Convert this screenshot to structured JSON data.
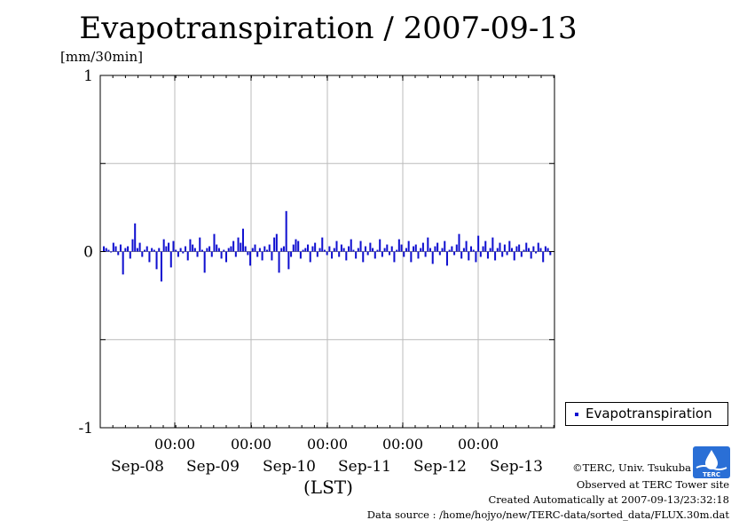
{
  "chart_data": {
    "type": "bar",
    "title": "Evapotranspiration / 2007-09-13",
    "ylabel": "[mm/30min]",
    "xlabel": "(LST)",
    "ylim": [
      -1,
      1
    ],
    "yticks": [
      "1",
      "0",
      "-1"
    ],
    "xticks_time": [
      "00:00",
      "00:00",
      "00:00",
      "00:00",
      "00:00"
    ],
    "xticks_date": [
      "Sep-08",
      "Sep-09",
      "Sep-10",
      "Sep-11",
      "Sep-12",
      "Sep-13"
    ],
    "grid": true,
    "legend_position": "right",
    "series": [
      {
        "name": "Evapotranspiration",
        "color": "#1010d0",
        "values": [
          0.03,
          0.02,
          0.01,
          0.0,
          0.05,
          0.03,
          -0.02,
          0.04,
          -0.13,
          0.02,
          0.03,
          -0.04,
          0.07,
          0.16,
          0.02,
          0.05,
          -0.03,
          0.01,
          0.03,
          -0.06,
          0.02,
          0.01,
          -0.1,
          0.02,
          -0.17,
          0.07,
          0.03,
          0.05,
          -0.09,
          0.06,
          0.01,
          -0.03,
          0.02,
          -0.01,
          0.03,
          -0.05,
          0.07,
          0.04,
          0.02,
          -0.03,
          0.08,
          0.01,
          -0.12,
          0.02,
          0.03,
          -0.03,
          0.1,
          0.04,
          0.02,
          -0.04,
          0.01,
          -0.06,
          0.02,
          0.03,
          0.06,
          -0.03,
          0.08,
          0.05,
          0.13,
          0.03,
          -0.02,
          -0.08,
          0.02,
          0.04,
          -0.03,
          0.02,
          -0.05,
          0.03,
          0.01,
          0.04,
          -0.05,
          0.08,
          0.1,
          -0.12,
          0.02,
          0.03,
          0.23,
          -0.1,
          -0.03,
          0.04,
          0.07,
          0.06,
          -0.04,
          0.01,
          0.02,
          0.04,
          -0.06,
          0.03,
          0.05,
          -0.03,
          0.02,
          0.08,
          0.01,
          -0.02,
          0.03,
          -0.04,
          0.02,
          0.06,
          -0.03,
          0.04,
          0.02,
          -0.05,
          0.03,
          0.07,
          0.01,
          -0.04,
          0.02,
          0.06,
          -0.06,
          0.03,
          -0.02,
          0.05,
          0.02,
          -0.04,
          0.01,
          0.07,
          -0.03,
          0.02,
          0.04,
          -0.02,
          0.03,
          -0.06,
          0.01,
          0.07,
          0.04,
          -0.03,
          0.02,
          0.06,
          -0.06,
          0.03,
          0.04,
          -0.04,
          0.02,
          0.05,
          -0.03,
          0.08,
          0.02,
          -0.07,
          0.03,
          0.05,
          -0.02,
          0.02,
          0.06,
          -0.08,
          0.01,
          0.03,
          -0.02,
          0.04,
          0.1,
          -0.04,
          0.02,
          0.06,
          -0.05,
          0.03,
          0.01,
          -0.06,
          0.09,
          -0.03,
          0.03,
          0.06,
          -0.04,
          0.02,
          0.08,
          -0.05,
          0.02,
          0.05,
          -0.03,
          0.04,
          -0.02,
          0.06,
          0.02,
          -0.05,
          0.03,
          0.04,
          -0.03,
          0.01,
          0.05,
          0.02,
          -0.04,
          0.03,
          -0.01,
          0.05,
          0.02,
          -0.06,
          0.03,
          0.02,
          -0.02
        ]
      }
    ]
  },
  "legend": {
    "label": "Evapotranspiration"
  },
  "footer": {
    "credit": "©TERC, Univ. Tsukuba",
    "observed": "Observed at TERC Tower site",
    "created": "Created Automatically at 2007-09-13/23:32:18",
    "source": "Data source : /home/hojyo/new/TERC-data/sorted_data/FLUX.30m.dat",
    "logo_text": "TERC"
  }
}
